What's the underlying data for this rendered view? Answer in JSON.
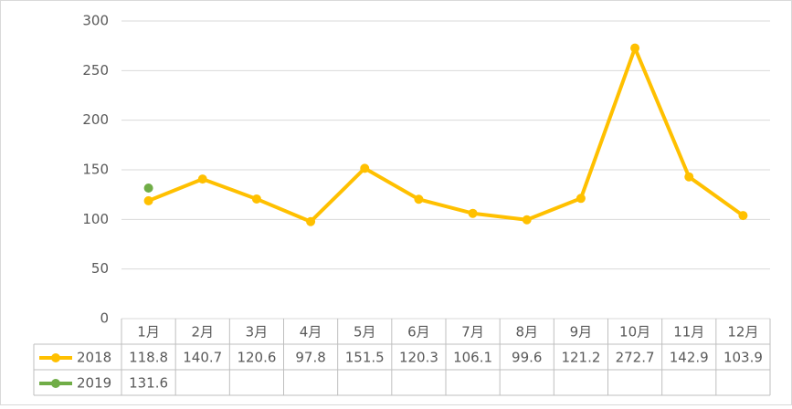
{
  "chart_data": {
    "type": "line",
    "categories": [
      "1月",
      "2月",
      "3月",
      "4月",
      "5月",
      "6月",
      "7月",
      "8月",
      "9月",
      "10月",
      "11月",
      "12月"
    ],
    "series": [
      {
        "name": "2018",
        "color": "#ffc000",
        "values": [
          118.8,
          140.7,
          120.6,
          97.8,
          151.5,
          120.3,
          106.1,
          99.6,
          121.2,
          272.7,
          142.9,
          103.9
        ]
      },
      {
        "name": "2019",
        "color": "#70ad47",
        "values": [
          131.6,
          null,
          null,
          null,
          null,
          null,
          null,
          null,
          null,
          null,
          null,
          null
        ]
      }
    ],
    "ylim": [
      0,
      300
    ],
    "yticks": [
      0,
      50,
      100,
      150,
      200,
      250,
      300
    ],
    "grid": true,
    "data_table": true
  }
}
